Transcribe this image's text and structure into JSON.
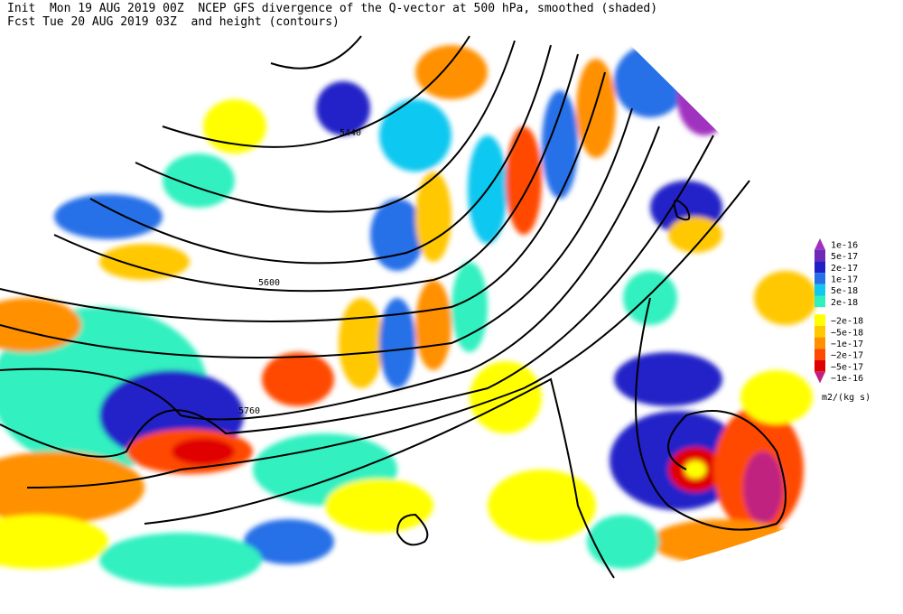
{
  "header": {
    "line1": "Init  Mon 19 AUG 2019 00Z  NCEP GFS divergence of the Q-vector at 500 hPa, smoothed (shaded)",
    "line2": "Fcst Tue 20 AUG 2019 03Z  and height (contours)"
  },
  "contour_labels": [
    5440,
    5600,
    5760
  ],
  "colorbar": {
    "items": [
      {
        "label": "1e-16",
        "color": "#a030c0"
      },
      {
        "label": "5e-17",
        "color": "#7028b8"
      },
      {
        "label": "2e-17",
        "color": "#2020c8"
      },
      {
        "label": "1e-17",
        "color": "#2870e8"
      },
      {
        "label": "5e-18",
        "color": "#10c8f0"
      },
      {
        "label": "2e-18",
        "color": "#30f0c0"
      },
      {
        "label": "−2e-18",
        "color": "#ffff00"
      },
      {
        "label": "−5e-18",
        "color": "#ffc800"
      },
      {
        "label": "−1e-17",
        "color": "#ff9000"
      },
      {
        "label": "−2e-17",
        "color": "#ff4800"
      },
      {
        "label": "−5e-17",
        "color": "#e00000"
      },
      {
        "label": "−1e-16",
        "color": "#c02080"
      }
    ],
    "units": "m2/(kg s)"
  }
}
